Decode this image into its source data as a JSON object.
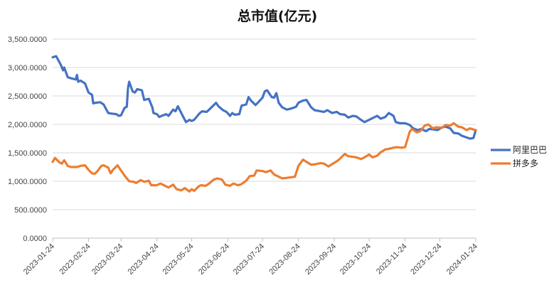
{
  "chart_data": {
    "type": "line",
    "title": "总市值(亿元)",
    "xlabel": "",
    "ylabel": "",
    "ylim": [
      0,
      3500
    ],
    "y_ticks": [
      "0.0000",
      "500.0000",
      "1,000.0000",
      "1,500.0000",
      "2,000.0000",
      "2,500.0000",
      "3,000.0000",
      "3,500.0000"
    ],
    "y_tick_values": [
      0,
      500,
      1000,
      1500,
      2000,
      2500,
      3000,
      3500
    ],
    "x_ticks": [
      "2023-01-24",
      "2023-02-24",
      "2023-03-24",
      "2023-04-24",
      "2023-05-24",
      "2023-06-24",
      "2023-07-24",
      "2023-08-24",
      "2023-09-24",
      "2023-10-24",
      "2023-11-24",
      "2023-12-24",
      "2024-01-24"
    ],
    "grid": "horizontal",
    "legend_position": "right",
    "series": [
      {
        "name": "阿里巴巴",
        "color": "#4472C4",
        "points": [
          [
            "2023-01-24",
            3180
          ],
          [
            "2023-01-27",
            3200
          ],
          [
            "2023-01-31",
            3050
          ],
          [
            "2023-02-02",
            2950
          ],
          [
            "2023-02-03",
            3000
          ],
          [
            "2023-02-06",
            2830
          ],
          [
            "2023-02-09",
            2810
          ],
          [
            "2023-02-13",
            2790
          ],
          [
            "2023-02-14",
            2870
          ],
          [
            "2023-02-15",
            2750
          ],
          [
            "2023-02-17",
            2770
          ],
          [
            "2023-02-21",
            2720
          ],
          [
            "2023-02-24",
            2560
          ],
          [
            "2023-02-27",
            2520
          ],
          [
            "2023-02-28",
            2370
          ],
          [
            "2023-03-02",
            2380
          ],
          [
            "2023-03-06",
            2390
          ],
          [
            "2023-03-09",
            2350
          ],
          [
            "2023-03-13",
            2200
          ],
          [
            "2023-03-16",
            2190
          ],
          [
            "2023-03-20",
            2180
          ],
          [
            "2023-03-22",
            2150
          ],
          [
            "2023-03-24",
            2160
          ],
          [
            "2023-03-27",
            2290
          ],
          [
            "2023-03-29",
            2310
          ],
          [
            "2023-03-30",
            2640
          ],
          [
            "2023-03-31",
            2750
          ],
          [
            "2023-04-03",
            2580
          ],
          [
            "2023-04-05",
            2560
          ],
          [
            "2023-04-07",
            2620
          ],
          [
            "2023-04-11",
            2600
          ],
          [
            "2023-04-13",
            2430
          ],
          [
            "2023-04-17",
            2450
          ],
          [
            "2023-04-20",
            2300
          ],
          [
            "2023-04-21",
            2200
          ],
          [
            "2023-04-24",
            2180
          ],
          [
            "2023-04-26",
            2130
          ],
          [
            "2023-04-28",
            2150
          ],
          [
            "2023-05-02",
            2180
          ],
          [
            "2023-05-04",
            2150
          ],
          [
            "2023-05-08",
            2260
          ],
          [
            "2023-05-10",
            2230
          ],
          [
            "2023-05-12",
            2320
          ],
          [
            "2023-05-15",
            2200
          ],
          [
            "2023-05-17",
            2120
          ],
          [
            "2023-05-19",
            2040
          ],
          [
            "2023-05-22",
            2080
          ],
          [
            "2023-05-24",
            2060
          ],
          [
            "2023-05-26",
            2080
          ],
          [
            "2023-05-31",
            2200
          ],
          [
            "2023-06-02",
            2230
          ],
          [
            "2023-06-06",
            2220
          ],
          [
            "2023-06-08",
            2260
          ],
          [
            "2023-06-12",
            2340
          ],
          [
            "2023-06-14",
            2380
          ],
          [
            "2023-06-16",
            2320
          ],
          [
            "2023-06-20",
            2250
          ],
          [
            "2023-06-23",
            2220
          ],
          [
            "2023-06-26",
            2150
          ],
          [
            "2023-06-28",
            2200
          ],
          [
            "2023-06-30",
            2170
          ],
          [
            "2023-07-04",
            2180
          ],
          [
            "2023-07-06",
            2330
          ],
          [
            "2023-07-10",
            2350
          ],
          [
            "2023-07-12",
            2480
          ],
          [
            "2023-07-14",
            2420
          ],
          [
            "2023-07-18",
            2340
          ],
          [
            "2023-07-20",
            2380
          ],
          [
            "2023-07-24",
            2470
          ],
          [
            "2023-07-26",
            2580
          ],
          [
            "2023-07-28",
            2600
          ],
          [
            "2023-08-01",
            2480
          ],
          [
            "2023-08-03",
            2470
          ],
          [
            "2023-08-05",
            2550
          ],
          [
            "2023-08-07",
            2380
          ],
          [
            "2023-08-10",
            2300
          ],
          [
            "2023-08-14",
            2260
          ],
          [
            "2023-08-18",
            2280
          ],
          [
            "2023-08-22",
            2310
          ],
          [
            "2023-08-24",
            2380
          ],
          [
            "2023-08-28",
            2420
          ],
          [
            "2023-08-31",
            2430
          ],
          [
            "2023-09-04",
            2300
          ],
          [
            "2023-09-07",
            2250
          ],
          [
            "2023-09-12",
            2230
          ],
          [
            "2023-09-15",
            2220
          ],
          [
            "2023-09-18",
            2250
          ],
          [
            "2023-09-22",
            2200
          ],
          [
            "2023-09-26",
            2220
          ],
          [
            "2023-09-29",
            2180
          ],
          [
            "2023-10-03",
            2170
          ],
          [
            "2023-10-06",
            2120
          ],
          [
            "2023-10-10",
            2150
          ],
          [
            "2023-10-13",
            2140
          ],
          [
            "2023-10-17",
            2080
          ],
          [
            "2023-10-20",
            2040
          ],
          [
            "2023-10-24",
            2080
          ],
          [
            "2023-10-27",
            2110
          ],
          [
            "2023-10-31",
            2150
          ],
          [
            "2023-11-03",
            2100
          ],
          [
            "2023-11-07",
            2130
          ],
          [
            "2023-11-10",
            2200
          ],
          [
            "2023-11-14",
            2150
          ],
          [
            "2023-11-16",
            2040
          ],
          [
            "2023-11-20",
            2020
          ],
          [
            "2023-11-24",
            2020
          ],
          [
            "2023-11-28",
            1990
          ],
          [
            "2023-12-01",
            1930
          ],
          [
            "2023-12-05",
            1900
          ],
          [
            "2023-12-08",
            1920
          ],
          [
            "2023-12-12",
            1880
          ],
          [
            "2023-12-15",
            1920
          ],
          [
            "2023-12-19",
            1910
          ],
          [
            "2023-12-22",
            1900
          ],
          [
            "2023-12-26",
            1950
          ],
          [
            "2023-12-29",
            1960
          ],
          [
            "2024-01-02",
            1930
          ],
          [
            "2024-01-05",
            1850
          ],
          [
            "2024-01-09",
            1840
          ],
          [
            "2024-01-12",
            1800
          ],
          [
            "2024-01-16",
            1770
          ],
          [
            "2024-01-19",
            1750
          ],
          [
            "2024-01-22",
            1760
          ],
          [
            "2024-01-24",
            1900
          ]
        ]
      },
      {
        "name": "拼多多",
        "color": "#ED7D31",
        "points": [
          [
            "2023-01-24",
            1340
          ],
          [
            "2023-01-26",
            1410
          ],
          [
            "2023-01-30",
            1330
          ],
          [
            "2023-02-01",
            1310
          ],
          [
            "2023-02-03",
            1370
          ],
          [
            "2023-02-06",
            1270
          ],
          [
            "2023-02-09",
            1250
          ],
          [
            "2023-02-14",
            1250
          ],
          [
            "2023-02-17",
            1270
          ],
          [
            "2023-02-21",
            1280
          ],
          [
            "2023-02-24",
            1200
          ],
          [
            "2023-02-27",
            1140
          ],
          [
            "2023-03-01",
            1130
          ],
          [
            "2023-03-03",
            1160
          ],
          [
            "2023-03-07",
            1270
          ],
          [
            "2023-03-09",
            1280
          ],
          [
            "2023-03-13",
            1240
          ],
          [
            "2023-03-15",
            1140
          ],
          [
            "2023-03-17",
            1200
          ],
          [
            "2023-03-21",
            1280
          ],
          [
            "2023-03-23",
            1220
          ],
          [
            "2023-03-27",
            1100
          ],
          [
            "2023-03-31",
            1000
          ],
          [
            "2023-04-04",
            990
          ],
          [
            "2023-04-06",
            970
          ],
          [
            "2023-04-10",
            1020
          ],
          [
            "2023-04-13",
            990
          ],
          [
            "2023-04-17",
            1010
          ],
          [
            "2023-04-19",
            930
          ],
          [
            "2023-04-24",
            930
          ],
          [
            "2023-04-27",
            960
          ],
          [
            "2023-05-01",
            920
          ],
          [
            "2023-05-04",
            890
          ],
          [
            "2023-05-08",
            940
          ],
          [
            "2023-05-11",
            860
          ],
          [
            "2023-05-15",
            840
          ],
          [
            "2023-05-18",
            880
          ],
          [
            "2023-05-22",
            820
          ],
          [
            "2023-05-24",
            860
          ],
          [
            "2023-05-26",
            830
          ],
          [
            "2023-05-30",
            910
          ],
          [
            "2023-06-01",
            930
          ],
          [
            "2023-06-05",
            920
          ],
          [
            "2023-06-08",
            960
          ],
          [
            "2023-06-12",
            1030
          ],
          [
            "2023-06-15",
            1050
          ],
          [
            "2023-06-19",
            1030
          ],
          [
            "2023-06-22",
            940
          ],
          [
            "2023-06-26",
            920
          ],
          [
            "2023-06-29",
            960
          ],
          [
            "2023-07-03",
            930
          ],
          [
            "2023-07-06",
            950
          ],
          [
            "2023-07-10",
            1010
          ],
          [
            "2023-07-13",
            1090
          ],
          [
            "2023-07-17",
            1100
          ],
          [
            "2023-07-19",
            1190
          ],
          [
            "2023-07-24",
            1180
          ],
          [
            "2023-07-27",
            1160
          ],
          [
            "2023-07-31",
            1190
          ],
          [
            "2023-08-03",
            1120
          ],
          [
            "2023-08-07",
            1080
          ],
          [
            "2023-08-10",
            1050
          ],
          [
            "2023-08-14",
            1060
          ],
          [
            "2023-08-18",
            1070
          ],
          [
            "2023-08-21",
            1080
          ],
          [
            "2023-08-24",
            1270
          ],
          [
            "2023-08-28",
            1380
          ],
          [
            "2023-08-31",
            1340
          ],
          [
            "2023-09-04",
            1290
          ],
          [
            "2023-09-08",
            1300
          ],
          [
            "2023-09-12",
            1320
          ],
          [
            "2023-09-15",
            1310
          ],
          [
            "2023-09-19",
            1260
          ],
          [
            "2023-09-22",
            1300
          ],
          [
            "2023-09-26",
            1350
          ],
          [
            "2023-09-28",
            1380
          ],
          [
            "2023-10-03",
            1480
          ],
          [
            "2023-10-06",
            1440
          ],
          [
            "2023-10-10",
            1430
          ],
          [
            "2023-10-13",
            1420
          ],
          [
            "2023-10-17",
            1390
          ],
          [
            "2023-10-20",
            1420
          ],
          [
            "2023-10-24",
            1470
          ],
          [
            "2023-10-27",
            1420
          ],
          [
            "2023-10-31",
            1450
          ],
          [
            "2023-11-03",
            1510
          ],
          [
            "2023-11-07",
            1560
          ],
          [
            "2023-11-10",
            1570
          ],
          [
            "2023-11-14",
            1590
          ],
          [
            "2023-11-17",
            1600
          ],
          [
            "2023-11-21",
            1590
          ],
          [
            "2023-11-24",
            1600
          ],
          [
            "2023-11-28",
            1870
          ],
          [
            "2023-11-30",
            1920
          ],
          [
            "2023-12-04",
            1860
          ],
          [
            "2023-12-07",
            1880
          ],
          [
            "2023-12-11",
            1980
          ],
          [
            "2023-12-14",
            2000
          ],
          [
            "2023-12-18",
            1930
          ],
          [
            "2023-12-21",
            1950
          ],
          [
            "2023-12-26",
            1940
          ],
          [
            "2023-12-29",
            1990
          ],
          [
            "2024-01-02",
            1980
          ],
          [
            "2024-01-05",
            2020
          ],
          [
            "2024-01-09",
            1960
          ],
          [
            "2024-01-12",
            1950
          ],
          [
            "2024-01-16",
            1900
          ],
          [
            "2024-01-19",
            1930
          ],
          [
            "2024-01-22",
            1910
          ],
          [
            "2024-01-24",
            1900
          ]
        ]
      }
    ]
  }
}
